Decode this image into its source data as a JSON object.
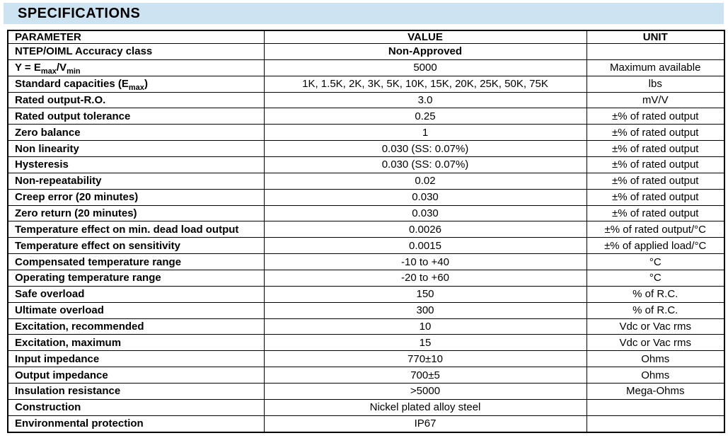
{
  "page": {
    "title": "SPECIFICATIONS"
  },
  "colors": {
    "title_bar_background": "#cde3f1",
    "table_border": "#000000",
    "text": "#000000"
  },
  "table": {
    "headers": [
      "PARAMETER",
      "VALUE",
      "UNIT"
    ],
    "rows": [
      {
        "parameter": "NTEP/OIML Accuracy class",
        "value": "Non-Approved",
        "unit": "",
        "value_bold": true
      },
      {
        "parameter": "Y = E{max}/V{min}",
        "value": "5000",
        "unit": "Maximum available",
        "value_bold": false
      },
      {
        "parameter": "Standard capacities (E{max})",
        "value": "1K, 1.5K, 2K, 3K, 5K, 10K, 15K, 20K, 25K, 50K, 75K",
        "unit": "lbs",
        "value_bold": false
      },
      {
        "parameter": "Rated output-R.O.",
        "value": "3.0",
        "unit": "mV/V",
        "value_bold": false
      },
      {
        "parameter": "Rated output tolerance",
        "value": "0.25",
        "unit": "±% of rated output",
        "value_bold": false
      },
      {
        "parameter": "Zero balance",
        "value": "1",
        "unit": "±% of rated output",
        "value_bold": false
      },
      {
        "parameter": "Non linearity",
        "value": "0.030 (SS: 0.07%)",
        "unit": "±% of rated output",
        "value_bold": false
      },
      {
        "parameter": "Hysteresis",
        "value": "0.030 (SS: 0.07%)",
        "unit": "±% of rated output",
        "value_bold": false
      },
      {
        "parameter": "Non-repeatability",
        "value": "0.02",
        "unit": "±% of rated output",
        "value_bold": false
      },
      {
        "parameter": "Creep error (20 minutes)",
        "value": "0.030",
        "unit": "±% of rated output",
        "value_bold": false
      },
      {
        "parameter": "Zero return (20 minutes)",
        "value": "0.030",
        "unit": "±% of rated output",
        "value_bold": false
      },
      {
        "parameter": "Temperature effect on min. dead load output",
        "value": "0.0026",
        "unit": "±% of rated output/°C",
        "value_bold": false
      },
      {
        "parameter": "Temperature effect on sensitivity",
        "value": "0.0015",
        "unit": "±% of applied load/°C",
        "value_bold": false
      },
      {
        "parameter": "Compensated temperature range",
        "value": "-10 to +40",
        "unit": "°C",
        "value_bold": false
      },
      {
        "parameter": "Operating temperature range",
        "value": "-20 to +60",
        "unit": "°C",
        "value_bold": false
      },
      {
        "parameter": "Safe overload",
        "value": "150",
        "unit": "% of R.C.",
        "value_bold": false
      },
      {
        "parameter": "Ultimate overload",
        "value": "300",
        "unit": "% of R.C.",
        "value_bold": false
      },
      {
        "parameter": "Excitation, recommended",
        "value": "10",
        "unit": "Vdc or Vac rms",
        "value_bold": false
      },
      {
        "parameter": "Excitation, maximum",
        "value": "15",
        "unit": "Vdc or Vac rms",
        "value_bold": false
      },
      {
        "parameter": "Input impedance",
        "value": "770±10",
        "unit": "Ohms",
        "value_bold": false
      },
      {
        "parameter": "Output impedance",
        "value": "700±5",
        "unit": "Ohms",
        "value_bold": false
      },
      {
        "parameter": "Insulation resistance",
        "value": ">5000",
        "unit": "Mega-Ohms",
        "value_bold": false
      },
      {
        "parameter": "Construction",
        "value": "Nickel plated alloy steel",
        "unit": "",
        "value_bold": false
      },
      {
        "parameter": "Environmental protection",
        "value": "IP67",
        "unit": "",
        "value_bold": false
      }
    ]
  }
}
